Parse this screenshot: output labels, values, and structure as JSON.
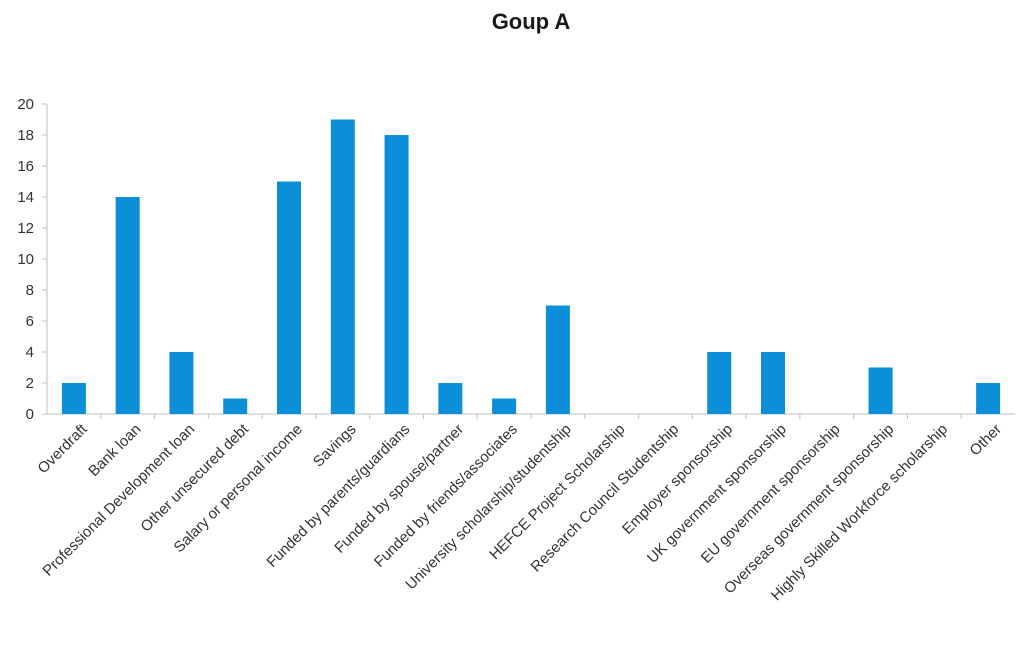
{
  "chart_data": {
    "type": "bar",
    "title": "Goup A",
    "xlabel": "",
    "ylabel": "",
    "ylim": [
      0,
      20
    ],
    "yticks": [
      0,
      2,
      4,
      6,
      8,
      10,
      12,
      14,
      16,
      18,
      20
    ],
    "grid": false,
    "legend": "none",
    "bar_color": "#0a8fd8",
    "categories": [
      "Overdraft",
      "Bank loan",
      "Professional Development loan",
      "Other unsecured debt",
      "Salary or personal income",
      "Savings",
      "Funded by parents/guardians",
      "Funded by spouse/partner",
      "Funded by friends/associates",
      "University scholarship/studentship",
      "HEFCE Project Scholarship",
      "Research Council Studentship",
      "Employer sponsorship",
      "UK government sponsorship",
      "EU government sponsorship",
      "Overseas government sponsorship",
      "Highly Skilled Workforce scholarship",
      "Other"
    ],
    "values": [
      2,
      14,
      4,
      1,
      15,
      19,
      18,
      2,
      1,
      7,
      0,
      0,
      4,
      4,
      0,
      3,
      0,
      2
    ]
  }
}
